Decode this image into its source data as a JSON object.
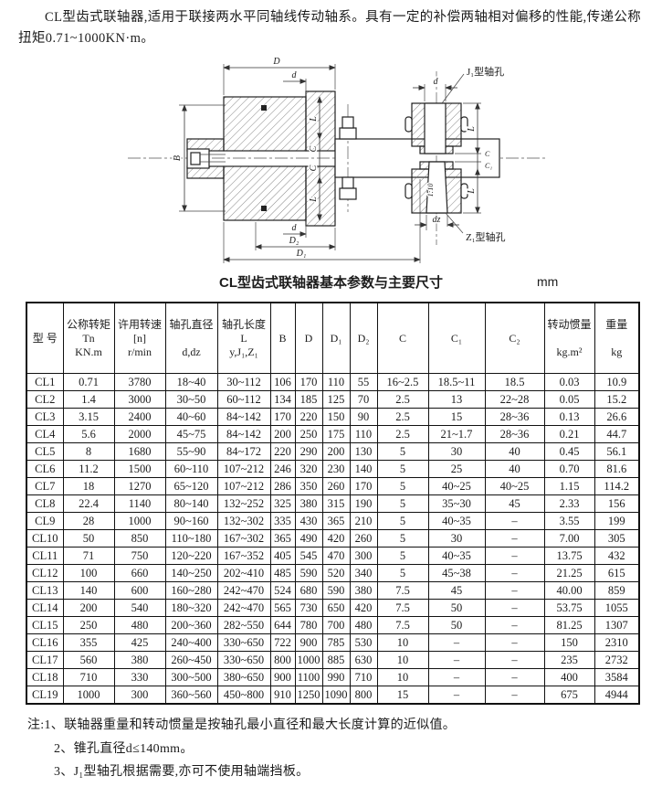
{
  "intro": "CL型齿式联轴器,适用于联接两水平同轴线传动轴系。具有一定的补偿两轴相对偏移的性能,传递公称扭矩0.71~1000KN·m。",
  "diagram": {
    "labels": {
      "D": "D",
      "d": "d",
      "B": "B",
      "L": "L",
      "C": "C",
      "C1": "C₁",
      "D1": "D₁",
      "D2": "D₂",
      "dz": "dz",
      "taper": "1:10",
      "j1_bore": "J₁型轴孔",
      "z1_bore": "Z₁型轴孔"
    }
  },
  "table": {
    "title": "CL型齿式联轴器基本参数与主要尺寸",
    "unit": "mm",
    "headers": [
      {
        "lines": [
          "型 号"
        ]
      },
      {
        "lines": [
          "公称转矩",
          "Tn",
          "KN.m"
        ]
      },
      {
        "lines": [
          "许用转速",
          "[n]",
          "r/min"
        ]
      },
      {
        "lines": [
          "轴孔直径",
          "",
          "d,dz"
        ]
      },
      {
        "lines": [
          "轴孔长度",
          "L",
          "y,J₁,Z₁"
        ]
      },
      {
        "lines": [
          "B"
        ]
      },
      {
        "lines": [
          "D"
        ]
      },
      {
        "lines": [
          "D₁"
        ]
      },
      {
        "lines": [
          "D₂"
        ]
      },
      {
        "lines": [
          "C"
        ]
      },
      {
        "lines": [
          "C₁"
        ]
      },
      {
        "lines": [
          "C₂"
        ]
      },
      {
        "lines": [
          "转动惯量",
          "",
          "kg.m²"
        ]
      },
      {
        "lines": [
          "重量",
          "",
          "kg"
        ]
      }
    ],
    "rows": [
      [
        "CL1",
        "0.71",
        "3780",
        "18~40",
        "30~112",
        "106",
        "170",
        "110",
        "55",
        "16~2.5",
        "18.5~11",
        "18.5",
        "0.03",
        "10.9"
      ],
      [
        "CL2",
        "1.4",
        "3000",
        "30~50",
        "60~112",
        "134",
        "185",
        "125",
        "70",
        "2.5",
        "13",
        "22~28",
        "0.05",
        "15.2"
      ],
      [
        "CL3",
        "3.15",
        "2400",
        "40~60",
        "84~142",
        "170",
        "220",
        "150",
        "90",
        "2.5",
        "15",
        "28~36",
        "0.13",
        "26.6"
      ],
      [
        "CL4",
        "5.6",
        "2000",
        "45~75",
        "84~142",
        "200",
        "250",
        "175",
        "110",
        "2.5",
        "21~1.7",
        "28~36",
        "0.21",
        "44.7"
      ],
      [
        "CL5",
        "8",
        "1680",
        "55~90",
        "84~172",
        "220",
        "290",
        "200",
        "130",
        "5",
        "30",
        "40",
        "0.45",
        "56.1"
      ],
      [
        "CL6",
        "11.2",
        "1500",
        "60~110",
        "107~212",
        "246",
        "320",
        "230",
        "140",
        "5",
        "25",
        "40",
        "0.70",
        "81.6"
      ],
      [
        "CL7",
        "18",
        "1270",
        "65~120",
        "107~212",
        "286",
        "350",
        "260",
        "170",
        "5",
        "40~25",
        "40~25",
        "1.15",
        "114.2"
      ],
      [
        "CL8",
        "22.4",
        "1140",
        "80~140",
        "132~252",
        "325",
        "380",
        "315",
        "190",
        "5",
        "35~30",
        "45",
        "2.33",
        "156"
      ],
      [
        "CL9",
        "28",
        "1000",
        "90~160",
        "132~302",
        "335",
        "430",
        "365",
        "210",
        "5",
        "40~35",
        "–",
        "3.55",
        "199"
      ],
      [
        "CL10",
        "50",
        "850",
        "110~180",
        "167~302",
        "365",
        "490",
        "420",
        "260",
        "5",
        "30",
        "–",
        "7.00",
        "305"
      ],
      [
        "CL11",
        "71",
        "750",
        "120~220",
        "167~352",
        "405",
        "545",
        "470",
        "300",
        "5",
        "40~35",
        "–",
        "13.75",
        "432"
      ],
      [
        "CL12",
        "100",
        "660",
        "140~250",
        "202~410",
        "485",
        "590",
        "520",
        "340",
        "5",
        "45~38",
        "–",
        "21.25",
        "615"
      ],
      [
        "CL13",
        "140",
        "600",
        "160~280",
        "242~470",
        "524",
        "680",
        "590",
        "380",
        "7.5",
        "45",
        "–",
        "40.00",
        "859"
      ],
      [
        "CL14",
        "200",
        "540",
        "180~320",
        "242~470",
        "565",
        "730",
        "650",
        "420",
        "7.5",
        "50",
        "–",
        "53.75",
        "1055"
      ],
      [
        "CL15",
        "250",
        "480",
        "200~360",
        "282~550",
        "644",
        "780",
        "700",
        "480",
        "7.5",
        "50",
        "–",
        "81.25",
        "1307"
      ],
      [
        "CL16",
        "355",
        "425",
        "240~400",
        "330~650",
        "722",
        "900",
        "785",
        "530",
        "10",
        "–",
        "–",
        "150",
        "2310"
      ],
      [
        "CL17",
        "560",
        "380",
        "260~450",
        "330~650",
        "800",
        "1000",
        "885",
        "630",
        "10",
        "–",
        "–",
        "235",
        "2732"
      ],
      [
        "CL18",
        "710",
        "330",
        "300~500",
        "380~650",
        "900",
        "1100",
        "990",
        "710",
        "10",
        "–",
        "–",
        "400",
        "3584"
      ],
      [
        "CL19",
        "1000",
        "300",
        "360~560",
        "450~800",
        "910",
        "1250",
        "1090",
        "800",
        "15",
        "–",
        "–",
        "675",
        "4944"
      ]
    ]
  },
  "notes": {
    "label": "注:",
    "items": [
      "1、联轴器重量和转动惯量是按轴孔最小直径和最大长度计算的近似值。",
      "2、锥孔直径d≤140mm。",
      "3、J₁型轴孔根据需要,亦可不使用轴端挡板。"
    ]
  }
}
